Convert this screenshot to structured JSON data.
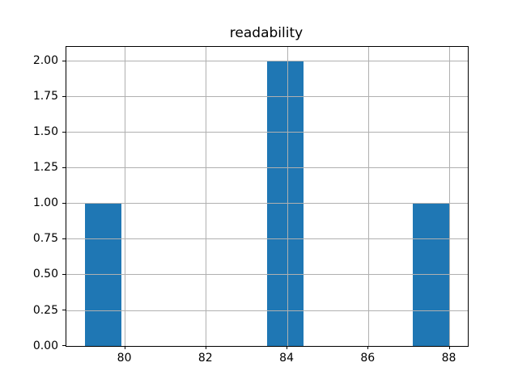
{
  "chart_data": {
    "type": "bar",
    "subtype": "histogram",
    "title": "readability",
    "xlabel": "",
    "ylabel": "",
    "grid": true,
    "legend": false,
    "xlim": [
      78.55,
      88.45
    ],
    "ylim": [
      0,
      2.1
    ],
    "x_ticks": {
      "values": [
        80,
        82,
        84,
        86,
        88
      ],
      "labels": [
        "80",
        "82",
        "84",
        "86",
        "88"
      ]
    },
    "y_ticks": {
      "values": [
        0,
        0.25,
        0.5,
        0.75,
        1.0,
        1.25,
        1.5,
        1.75,
        2.0
      ],
      "labels": [
        "0.00",
        "0.25",
        "0.50",
        "0.75",
        "1.00",
        "1.25",
        "1.50",
        "1.75",
        "2.00"
      ]
    },
    "bin_width": 0.9,
    "bars": [
      {
        "bin_start": 79.0,
        "bin_end": 79.9,
        "count": 1
      },
      {
        "bin_start": 83.5,
        "bin_end": 84.4,
        "count": 2
      },
      {
        "bin_start": 87.1,
        "bin_end": 88.0,
        "count": 1
      }
    ],
    "colors": {
      "bar": "#1f77b4",
      "grid": "#b0b0b0",
      "spine": "#000000",
      "background": "#ffffff",
      "text": "#000000"
    }
  }
}
